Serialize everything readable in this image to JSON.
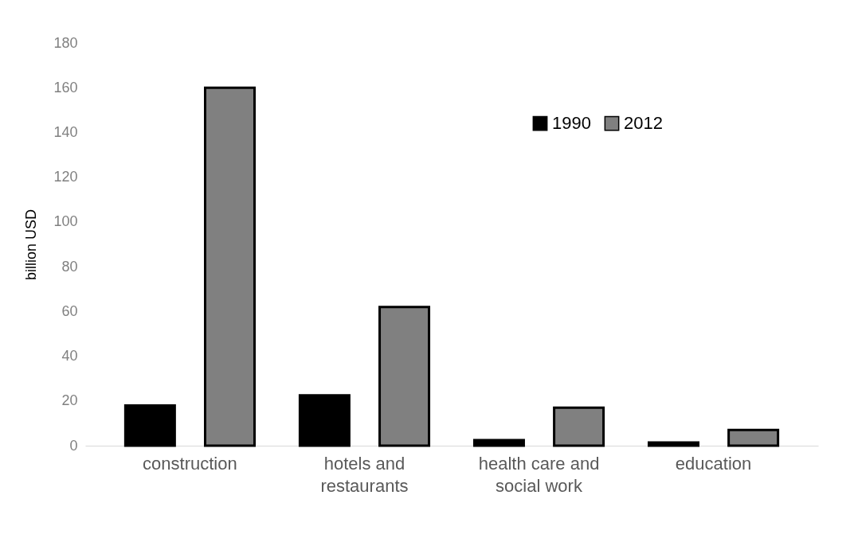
{
  "chart_data": {
    "type": "bar",
    "ylabel": "billion USD",
    "categories": [
      "construction",
      "hotels and restaurants",
      "health care and social work",
      "education"
    ],
    "series": [
      {
        "name": "1990",
        "color": "#000000",
        "values": [
          18,
          22.5,
          2.5,
          1.4
        ]
      },
      {
        "name": "2012",
        "color": "#808080",
        "values": [
          160,
          62,
          17,
          7
        ]
      }
    ],
    "ylim": [
      0,
      180
    ],
    "yticks": [
      0,
      20,
      40,
      60,
      80,
      100,
      120,
      140,
      160,
      180
    ],
    "grid": false,
    "legend": "top right"
  }
}
